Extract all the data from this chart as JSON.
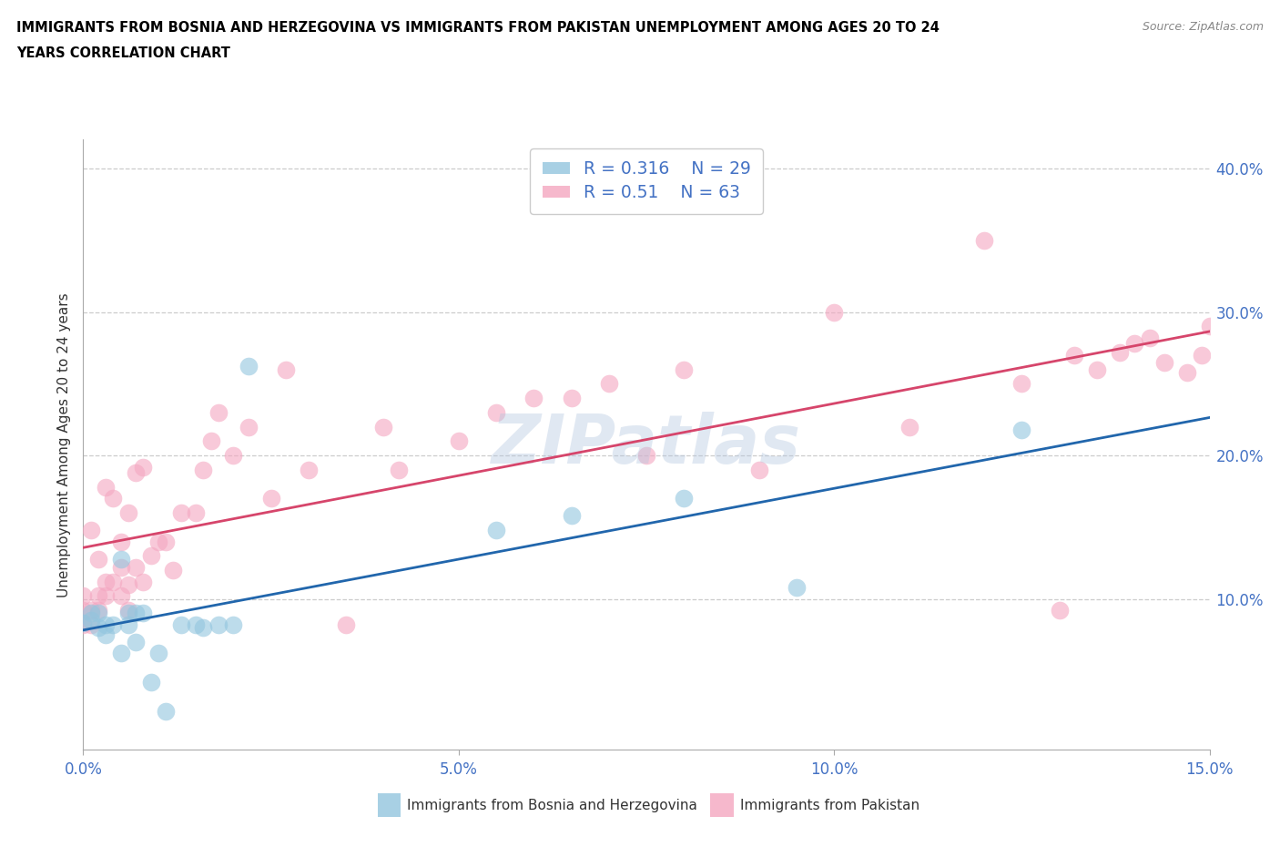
{
  "title_line1": "IMMIGRANTS FROM BOSNIA AND HERZEGOVINA VS IMMIGRANTS FROM PAKISTAN UNEMPLOYMENT AMONG AGES 20 TO 24",
  "title_line2": "YEARS CORRELATION CHART",
  "source": "Source: ZipAtlas.com",
  "ylabel": "Unemployment Among Ages 20 to 24 years",
  "xlim": [
    0.0,
    0.15
  ],
  "ylim": [
    -0.005,
    0.42
  ],
  "xticks": [
    0.0,
    0.05,
    0.1,
    0.15
  ],
  "xticklabels": [
    "0.0%",
    "5.0%",
    "10.0%",
    "15.0%"
  ],
  "yticks": [
    0.1,
    0.2,
    0.3,
    0.4
  ],
  "yticklabels": [
    "10.0%",
    "20.0%",
    "30.0%",
    "40.0%"
  ],
  "bosnia_color": "#92c5de",
  "pakistan_color": "#f4a6c0",
  "bosnia_line_color": "#2166ac",
  "pakistan_line_color": "#d6456b",
  "tick_color": "#4472c4",
  "legend_text_color": "#4472c4",
  "bosnia_R": 0.316,
  "bosnia_N": 29,
  "pakistan_R": 0.51,
  "pakistan_N": 63,
  "legend_label1": "Immigrants from Bosnia and Herzegovina",
  "legend_label2": "Immigrants from Pakistan",
  "bosnia_x": [
    0.0,
    0.001,
    0.001,
    0.002,
    0.002,
    0.003,
    0.003,
    0.004,
    0.005,
    0.005,
    0.006,
    0.006,
    0.007,
    0.007,
    0.008,
    0.009,
    0.01,
    0.011,
    0.013,
    0.015,
    0.016,
    0.018,
    0.02,
    0.022,
    0.055,
    0.065,
    0.08,
    0.095,
    0.125
  ],
  "bosnia_y": [
    0.083,
    0.085,
    0.09,
    0.08,
    0.09,
    0.075,
    0.082,
    0.082,
    0.062,
    0.128,
    0.082,
    0.09,
    0.07,
    0.09,
    0.09,
    0.042,
    0.062,
    0.022,
    0.082,
    0.082,
    0.08,
    0.082,
    0.082,
    0.262,
    0.148,
    0.158,
    0.17,
    0.108,
    0.218
  ],
  "pakistan_x": [
    0.0,
    0.0,
    0.0,
    0.001,
    0.001,
    0.001,
    0.002,
    0.002,
    0.002,
    0.003,
    0.003,
    0.003,
    0.004,
    0.004,
    0.005,
    0.005,
    0.005,
    0.006,
    0.006,
    0.006,
    0.007,
    0.007,
    0.008,
    0.008,
    0.009,
    0.01,
    0.011,
    0.012,
    0.013,
    0.015,
    0.016,
    0.017,
    0.018,
    0.02,
    0.022,
    0.025,
    0.027,
    0.03,
    0.035,
    0.04,
    0.042,
    0.05,
    0.055,
    0.06,
    0.065,
    0.07,
    0.075,
    0.08,
    0.09,
    0.1,
    0.11,
    0.12,
    0.125,
    0.13,
    0.132,
    0.135,
    0.138,
    0.14,
    0.142,
    0.144,
    0.147,
    0.149,
    0.15
  ],
  "pakistan_y": [
    0.082,
    0.092,
    0.102,
    0.082,
    0.092,
    0.148,
    0.092,
    0.102,
    0.128,
    0.102,
    0.112,
    0.178,
    0.112,
    0.17,
    0.102,
    0.122,
    0.14,
    0.092,
    0.11,
    0.16,
    0.122,
    0.188,
    0.112,
    0.192,
    0.13,
    0.14,
    0.14,
    0.12,
    0.16,
    0.16,
    0.19,
    0.21,
    0.23,
    0.2,
    0.22,
    0.17,
    0.26,
    0.19,
    0.082,
    0.22,
    0.19,
    0.21,
    0.23,
    0.24,
    0.24,
    0.25,
    0.2,
    0.26,
    0.19,
    0.3,
    0.22,
    0.35,
    0.25,
    0.092,
    0.27,
    0.26,
    0.272,
    0.278,
    0.282,
    0.265,
    0.258,
    0.27,
    0.29
  ]
}
